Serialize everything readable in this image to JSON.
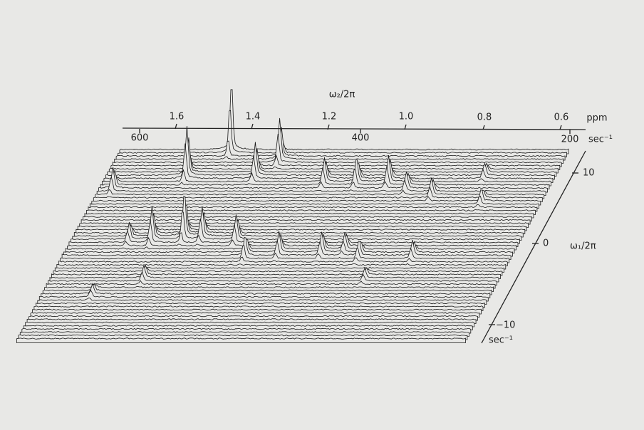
{
  "figure": {
    "top_axis": {
      "title": "ω₂/2π",
      "ppm_ticks": [
        "1.6",
        "1.4",
        "1.2",
        "1.0",
        "0.8",
        "0.6"
      ],
      "ppm_unit": "ppm",
      "hz_ticks": [
        "600",
        "400",
        "200"
      ],
      "hz_unit": "sec⁻¹"
    },
    "side_axis": {
      "title": "ω₁/2π",
      "ticks": [
        "10",
        "0",
        "−10"
      ],
      "unit": "sec⁻¹"
    }
  }
}
